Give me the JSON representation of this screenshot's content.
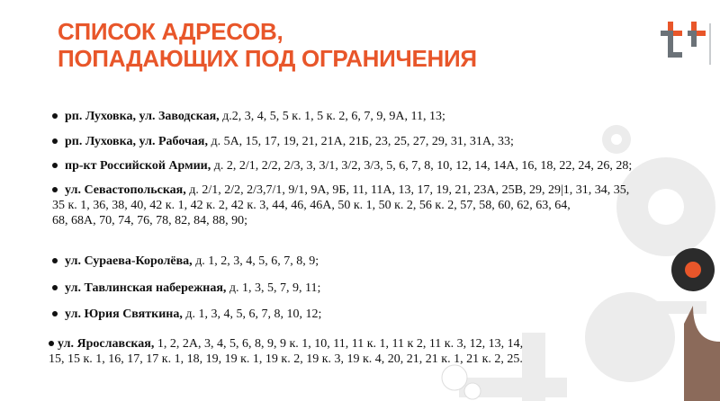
{
  "slide": {
    "title_line1": "СПИСОК АДРЕСОВ,",
    "title_line2": "ПОПАДАЮЩИХ ПОД ОГРАНИЧЕНИЯ",
    "accent_color": "#e8562a",
    "logo": "t2-logo",
    "items": [
      {
        "street": "рп. Луховка, ул. Заводская,",
        "houses": [
          " д.2, 3, 4, 5, 5 к. 1, 5 к. 2, 6, 7, 9, 9А, 11, 13;"
        ]
      },
      {
        "street": "рп. Луховка, ул. Рабочая,",
        "houses": [
          " д. 5А, 15, 17, 19, 21, 21А, 21Б, 23, 25, 27, 29, 31, 31А, 33;"
        ]
      },
      {
        "street": "пр-кт Российской Армии,",
        "houses": [
          " д. 2, 2/1, 2/2, 2/3, 3, 3/1, 3/2, 3/3, 5, 6, 7, 8, 10, 12, 14, 14А, 16, 18, 22, 24, 26, 28;"
        ]
      },
      {
        "street": "ул. Севастопольская,",
        "houses": [
          " д. 2/1, 2/2, 2/3,7/1, 9/1, 9А, 9Б, 11, 11А, 13, 17, 19, 21, 23А, 25В, 29, 29|1, 31, 34, 35,",
          "35 к. 1, 36, 38, 40, 42 к. 1, 42 к. 2, 42 к. 3, 44, 46, 46А, 50 к. 1, 50 к. 2, 56 к. 2, 57, 58, 60, 62, 63, 64,",
          "68, 68А, 70, 74, 76, 78, 82, 84, 88, 90;"
        ]
      },
      {
        "street": "ул. Сураева-Королёва,",
        "houses": [
          " д. 1, 2, 3, 4, 5, 6, 7, 8, 9;"
        ]
      },
      {
        "street": "ул. Тавлинская набережная,",
        "houses": [
          " д. 1, 3, 5, 7, 9, 11;"
        ]
      },
      {
        "street": "ул. Юрия Святкина,",
        "houses": [
          " д. 1, 3, 4, 5, 6, 7, 8, 10, 12;"
        ]
      },
      {
        "street": "ул. Ярославская,",
        "houses": [
          " 1, 2, 2А, 3, 4, 5, 6, 8, 9, 9 к. 1, 10, 11, 11 к. 1, 11 к 2, 11 к. 3, 12, 13, 14,",
          "15, 15 к. 1, 16, 17, 17 к. 1, 18, 19, 19 к. 1, 19 к. 2, 19 к. 3, 19 к. 4, 20, 21, 21 к. 1, 21 к. 2, 25."
        ]
      }
    ]
  }
}
